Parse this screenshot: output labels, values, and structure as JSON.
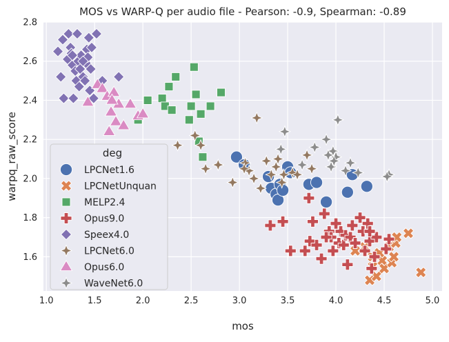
{
  "chart_data": {
    "type": "scatter",
    "title": "MOS vs WARP-Q per audio file - Pearson: -0.9, Spearman: -0.89",
    "xlabel": "mos",
    "ylabel": "warpq_raw_score",
    "xlim": [
      0.97,
      5.1
    ],
    "ylim": [
      1.425,
      2.8
    ],
    "xticks": [
      "1.0",
      "1.5",
      "2.0",
      "2.5",
      "3.0",
      "3.5",
      "4.0",
      "4.5",
      "5.0"
    ],
    "yticks": [
      "1.6",
      "1.8",
      "2.0",
      "2.2",
      "2.4",
      "2.6",
      "2.8"
    ],
    "grid": true,
    "legend": {
      "title": "deg",
      "placement": "lower-left"
    },
    "series": [
      {
        "name": "LPCNet1.6",
        "marker": "circle",
        "color": "#4c72b0",
        "points": [
          [
            2.97,
            2.11
          ],
          [
            3.05,
            2.07
          ],
          [
            3.3,
            2.01
          ],
          [
            3.33,
            1.95
          ],
          [
            3.38,
            1.92
          ],
          [
            3.4,
            1.89
          ],
          [
            3.42,
            1.97
          ],
          [
            3.45,
            1.94
          ],
          [
            3.5,
            2.06
          ],
          [
            3.53,
            2.03
          ],
          [
            3.72,
            1.97
          ],
          [
            3.8,
            1.98
          ],
          [
            3.9,
            1.88
          ],
          [
            4.12,
            1.93
          ],
          [
            4.17,
            2.02
          ],
          [
            4.32,
            1.96
          ]
        ]
      },
      {
        "name": "LPCNetUnquan",
        "marker": "x",
        "color": "#dd8452",
        "points": [
          [
            4.2,
            1.63
          ],
          [
            4.3,
            1.65
          ],
          [
            4.35,
            1.48
          ],
          [
            4.38,
            1.6
          ],
          [
            4.42,
            1.5
          ],
          [
            4.45,
            1.62
          ],
          [
            4.48,
            1.58
          ],
          [
            4.5,
            1.54
          ],
          [
            4.55,
            1.65
          ],
          [
            4.58,
            1.57
          ],
          [
            4.6,
            1.6
          ],
          [
            4.62,
            1.67
          ],
          [
            4.63,
            1.7
          ],
          [
            4.75,
            1.72
          ],
          [
            4.88,
            1.52
          ],
          [
            4.38,
            1.55
          ]
        ]
      },
      {
        "name": "MELP2.4",
        "marker": "square",
        "color": "#55a868",
        "points": [
          [
            1.95,
            2.3
          ],
          [
            2.05,
            2.4
          ],
          [
            2.2,
            2.41
          ],
          [
            2.23,
            2.37
          ],
          [
            2.27,
            2.47
          ],
          [
            2.3,
            2.35
          ],
          [
            2.34,
            2.52
          ],
          [
            2.48,
            2.3
          ],
          [
            2.5,
            2.37
          ],
          [
            2.53,
            2.57
          ],
          [
            2.55,
            2.43
          ],
          [
            2.58,
            2.19
          ],
          [
            2.6,
            2.33
          ],
          [
            2.62,
            2.11
          ],
          [
            2.7,
            2.37
          ],
          [
            2.81,
            2.44
          ]
        ]
      },
      {
        "name": "Opus9.0",
        "marker": "plus",
        "color": "#c44e52",
        "points": [
          [
            3.32,
            1.76
          ],
          [
            3.45,
            1.78
          ],
          [
            3.53,
            1.63
          ],
          [
            3.72,
            1.9
          ],
          [
            3.73,
            1.68
          ],
          [
            3.76,
            1.78
          ],
          [
            3.8,
            1.66
          ],
          [
            3.85,
            1.59
          ],
          [
            3.88,
            1.82
          ],
          [
            3.93,
            1.73
          ],
          [
            3.95,
            1.7
          ],
          [
            3.97,
            1.63
          ],
          [
            4.0,
            1.77
          ],
          [
            4.03,
            1.67
          ],
          [
            4.05,
            1.73
          ],
          [
            4.08,
            1.66
          ],
          [
            4.1,
            1.71
          ],
          [
            4.12,
            1.56
          ],
          [
            4.15,
            1.7
          ],
          [
            4.17,
            1.76
          ],
          [
            4.2,
            1.67
          ],
          [
            4.25,
            1.8
          ],
          [
            4.28,
            1.73
          ],
          [
            4.3,
            1.63
          ],
          [
            4.33,
            1.77
          ],
          [
            4.35,
            1.68
          ],
          [
            4.37,
            1.54
          ],
          [
            4.4,
            1.6
          ],
          [
            4.42,
            1.7
          ],
          [
            4.52,
            1.64
          ],
          [
            4.55,
            1.69
          ],
          [
            4.35,
            1.73
          ],
          [
            3.68,
            1.63
          ],
          [
            3.9,
            1.7
          ]
        ]
      },
      {
        "name": "Speex4.0",
        "marker": "diamond",
        "color": "#8172b3",
        "points": [
          [
            1.12,
            2.65
          ],
          [
            1.15,
            2.52
          ],
          [
            1.17,
            2.71
          ],
          [
            1.18,
            2.41
          ],
          [
            1.22,
            2.61
          ],
          [
            1.23,
            2.74
          ],
          [
            1.25,
            2.67
          ],
          [
            1.26,
            2.64
          ],
          [
            1.27,
            2.58
          ],
          [
            1.28,
            2.41
          ],
          [
            1.3,
            2.55
          ],
          [
            1.31,
            2.5
          ],
          [
            1.32,
            2.74
          ],
          [
            1.33,
            2.6
          ],
          [
            1.34,
            2.47
          ],
          [
            1.35,
            2.56
          ],
          [
            1.36,
            2.63
          ],
          [
            1.38,
            2.52
          ],
          [
            1.4,
            2.5
          ],
          [
            1.41,
            2.59
          ],
          [
            1.42,
            2.66
          ],
          [
            1.43,
            2.62
          ],
          [
            1.44,
            2.72
          ],
          [
            1.45,
            2.45
          ],
          [
            1.47,
            2.67
          ],
          [
            1.49,
            2.41
          ],
          [
            1.52,
            2.74
          ],
          [
            1.58,
            2.5
          ],
          [
            1.75,
            2.52
          ],
          [
            1.27,
            2.63
          ],
          [
            1.38,
            2.6
          ],
          [
            1.46,
            2.56
          ]
        ]
      },
      {
        "name": "LPCNet6.0",
        "marker": "star",
        "color": "#937860",
        "points": [
          [
            2.36,
            2.17
          ],
          [
            2.54,
            2.22
          ],
          [
            2.6,
            2.17
          ],
          [
            2.65,
            2.05
          ],
          [
            2.78,
            2.07
          ],
          [
            2.93,
            1.98
          ],
          [
            3.06,
            2.08
          ],
          [
            3.1,
            2.04
          ],
          [
            3.15,
            2.0
          ],
          [
            3.18,
            2.31
          ],
          [
            3.22,
            1.95
          ],
          [
            3.28,
            2.09
          ],
          [
            3.33,
            2.02
          ],
          [
            3.38,
            2.06
          ],
          [
            3.4,
            2.1
          ],
          [
            3.44,
            1.98
          ],
          [
            3.55,
            2.03
          ],
          [
            3.7,
            2.12
          ],
          [
            3.75,
            2.05
          ],
          [
            3.6,
            2.02
          ],
          [
            3.05,
            2.05
          ],
          [
            3.46,
            2.02
          ]
        ]
      },
      {
        "name": "Opus6.0",
        "marker": "triangle",
        "color": "#da8bc3",
        "points": [
          [
            1.43,
            2.39
          ],
          [
            1.53,
            2.48
          ],
          [
            1.58,
            2.46
          ],
          [
            1.63,
            2.42
          ],
          [
            1.65,
            2.24
          ],
          [
            1.67,
            2.34
          ],
          [
            1.7,
            2.44
          ],
          [
            1.72,
            2.29
          ],
          [
            1.75,
            2.38
          ],
          [
            1.8,
            2.27
          ],
          [
            1.87,
            2.38
          ],
          [
            1.95,
            2.32
          ],
          [
            2.0,
            2.33
          ],
          [
            1.68,
            2.4
          ]
        ]
      },
      {
        "name": "WaveNet6.0",
        "marker": "star",
        "color": "#8c8c8c",
        "points": [
          [
            3.43,
            2.15
          ],
          [
            3.47,
            2.24
          ],
          [
            3.65,
            2.07
          ],
          [
            3.78,
            2.16
          ],
          [
            3.9,
            2.2
          ],
          [
            3.95,
            2.06
          ],
          [
            3.97,
            2.14
          ],
          [
            4.0,
            2.11
          ],
          [
            4.02,
            2.3
          ],
          [
            4.1,
            2.04
          ],
          [
            4.15,
            2.08
          ],
          [
            4.23,
            2.03
          ],
          [
            4.55,
            2.02
          ],
          [
            3.98,
            2.09
          ],
          [
            3.92,
            2.12
          ],
          [
            4.53,
            2.01
          ]
        ]
      }
    ]
  }
}
